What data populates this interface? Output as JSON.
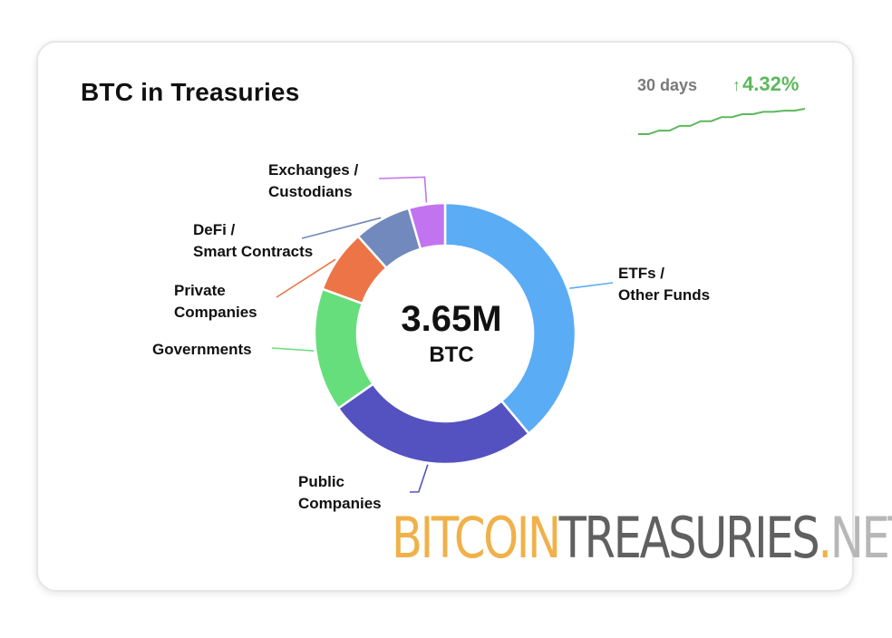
{
  "card": {
    "title": "BTC in Treasuries",
    "period": "30 days",
    "change_arrow": "↑",
    "change_value": "4.32%",
    "change_color": "#5cb85c"
  },
  "sparkline": {
    "trend": [
      0,
      0.6,
      1.4,
      2.2,
      2.9,
      3.4,
      3.8,
      4.0,
      4.32
    ]
  },
  "center": {
    "value": "3.65M",
    "unit": "BTC"
  },
  "logo": {
    "part1": "BITCOIN",
    "part2": "TREASURIES",
    "part3": ".",
    "part4": "NET"
  },
  "chart_data": {
    "type": "pie",
    "title": "BTC in Treasuries",
    "center_label": "3.65M BTC",
    "series": [
      {
        "name": "ETFs / Other Funds",
        "share": 37.2,
        "color": "#5aacf5"
      },
      {
        "name": "Public Companies",
        "share": 25.2,
        "color": "#5452c0"
      },
      {
        "name": "Governments",
        "share": 14.6,
        "color": "#66de7c"
      },
      {
        "name": "Private Companies",
        "share": 7.5,
        "color": "#ec7446"
      },
      {
        "name": "DeFi / Smart Contracts",
        "share": 6.8,
        "color": "#7189bc"
      },
      {
        "name": "Exchanges / Custodians",
        "share": 4.3,
        "color": "#c274f0"
      }
    ]
  }
}
